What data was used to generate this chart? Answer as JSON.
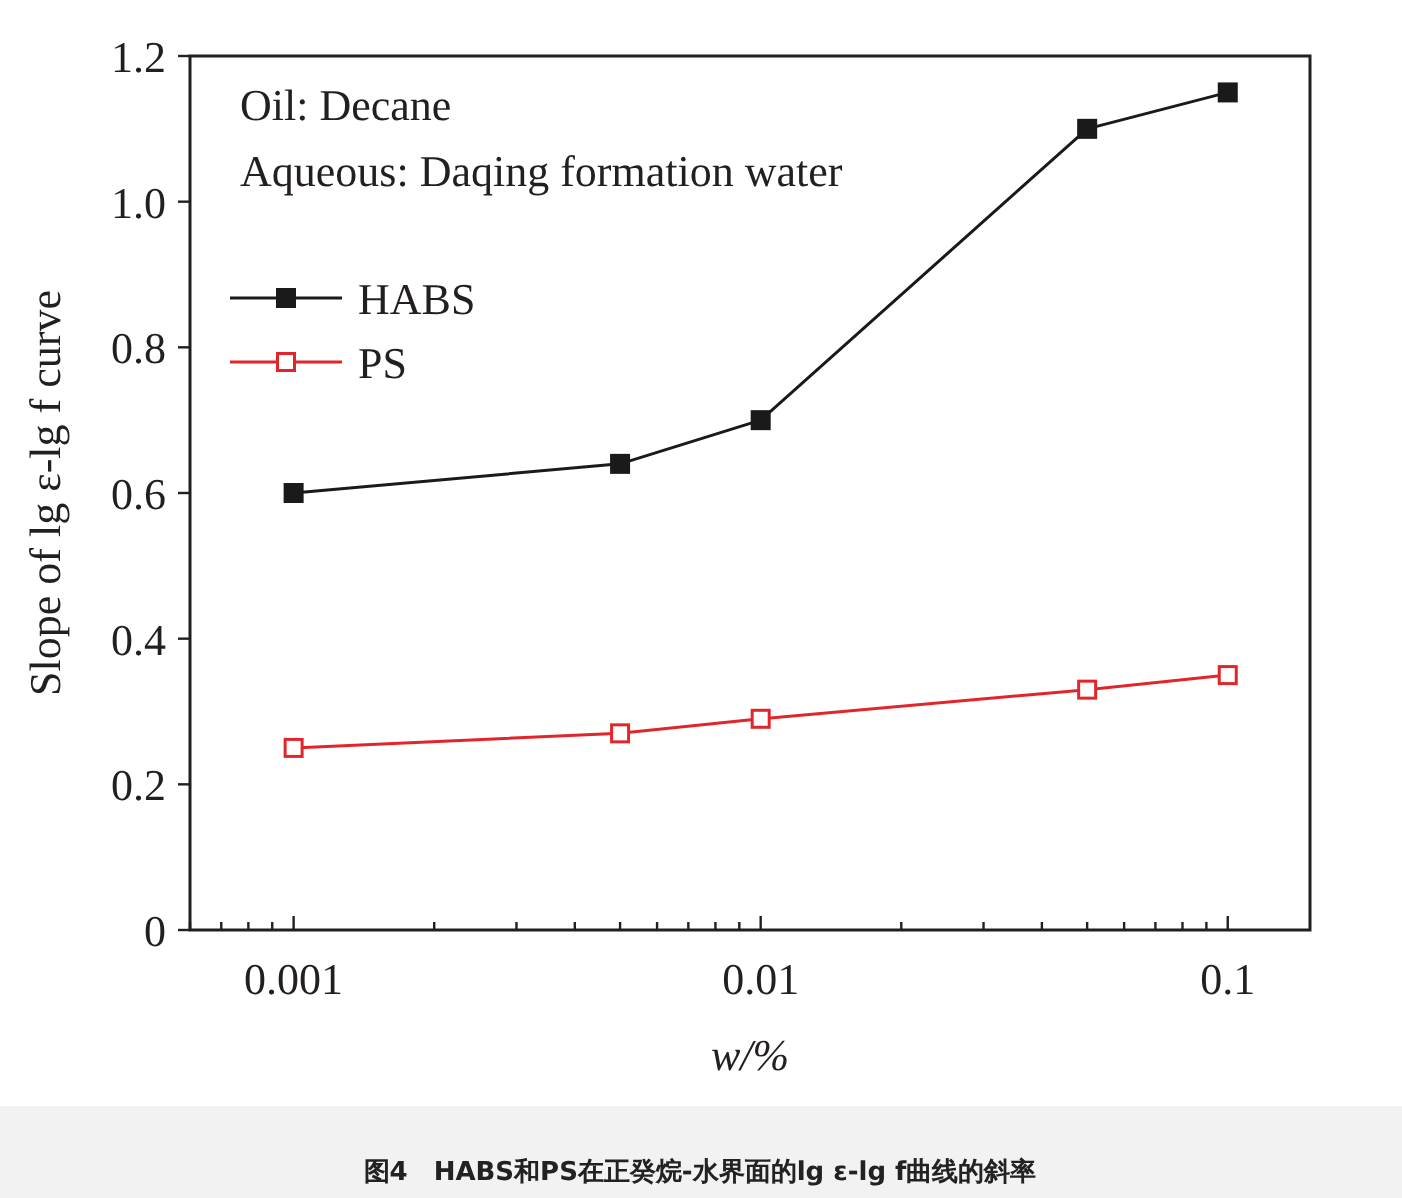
{
  "chart_data": {
    "type": "line",
    "xlabel": "w/%",
    "ylabel": "Slope of lg ε-lg f curve",
    "x": [
      0.001,
      0.005,
      0.01,
      0.05,
      0.1
    ],
    "series": [
      {
        "name": "HABS",
        "color": "#1a1a1a",
        "marker": "square",
        "values": [
          0.6,
          0.64,
          0.7,
          1.1,
          1.15
        ]
      },
      {
        "name": "PS",
        "color": "#e0262b",
        "marker": "square-open",
        "values": [
          0.25,
          0.27,
          0.29,
          0.33,
          0.35
        ]
      }
    ],
    "log": "x",
    "xlim": [
      0.0006,
      0.15
    ],
    "xticks": [
      {
        "value": 0.0006,
        "label": null
      },
      {
        "value": 0.0007,
        "label": null
      },
      {
        "value": 0.0008,
        "label": null
      },
      {
        "value": 0.0009,
        "label": null
      },
      0.001,
      {
        "value": 0.002,
        "label": null
      },
      {
        "value": 0.003,
        "label": null
      },
      {
        "value": 0.004,
        "label": null
      },
      {
        "value": 0.005,
        "label": null
      },
      {
        "value": 0.006,
        "label": null
      },
      {
        "value": 0.007,
        "label": null
      },
      {
        "value": 0.008,
        "label": null
      },
      {
        "value": 0.009,
        "label": null
      },
      0.01,
      {
        "value": 0.02,
        "label": null
      },
      {
        "value": 0.03,
        "label": null
      },
      {
        "value": 0.04,
        "label": null
      },
      {
        "value": 0.05,
        "label": null
      },
      {
        "value": 0.06,
        "label": null
      },
      {
        "value": 0.07,
        "label": null
      },
      {
        "value": 0.08,
        "label": null
      },
      {
        "value": 0.09,
        "label": null
      },
      0.1
    ],
    "ylim": [
      0,
      1.2
    ],
    "yticks": [
      0,
      {
        "value": 0.2,
        "label": "0.2"
      },
      {
        "value": 0.4,
        "label": "0.4"
      },
      {
        "value": 0.6,
        "label": "0.6"
      },
      {
        "value": 0.8,
        "label": "0.8"
      },
      {
        "value": 1,
        "label": "1.0"
      },
      {
        "value": 1.2,
        "label": "1.2"
      }
    ],
    "grid": false,
    "legend": "top left",
    "annotations": [
      "Oil: Decane",
      "Aqueous: Daqing formation water",
      "图4　HABS和PS在正癸烷-水界面的lg ε-lg f曲线的斜率"
    ]
  }
}
